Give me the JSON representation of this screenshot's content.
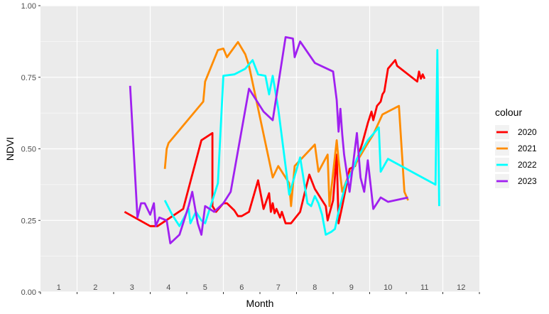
{
  "chart_data": {
    "type": "line",
    "xlabel": "Month",
    "ylabel": "NDVI",
    "xlim": [
      0.5,
      12.5
    ],
    "ylim": [
      0,
      1
    ],
    "y_ticks": [
      "0.00",
      "0.25",
      "0.50",
      "0.75",
      "1.00"
    ],
    "y_tick_values": [
      0,
      0.25,
      0.5,
      0.75,
      1.0
    ],
    "month_labels": [
      "1",
      "2",
      "3",
      "4",
      "5",
      "6",
      "7",
      "8",
      "9",
      "10",
      "11",
      "12"
    ],
    "grid": true,
    "legend_position": "right",
    "legend_title": "colour",
    "series": [
      {
        "name": "2020",
        "color": "#ff0000",
        "points": [
          [
            2.8,
            0.28
          ],
          [
            3.5,
            0.23
          ],
          [
            3.7,
            0.23
          ],
          [
            4.4,
            0.29
          ],
          [
            4.9,
            0.53
          ],
          [
            5.2,
            0.555
          ],
          [
            5.2,
            0.3
          ],
          [
            5.3,
            0.28
          ],
          [
            5.5,
            0.31
          ],
          [
            5.6,
            0.31
          ],
          [
            5.8,
            0.285
          ],
          [
            5.9,
            0.265
          ],
          [
            6.0,
            0.265
          ],
          [
            6.2,
            0.28
          ],
          [
            6.45,
            0.39
          ],
          [
            6.6,
            0.29
          ],
          [
            6.75,
            0.345
          ],
          [
            6.8,
            0.28
          ],
          [
            6.85,
            0.31
          ],
          [
            6.9,
            0.275
          ],
          [
            6.95,
            0.29
          ],
          [
            7.05,
            0.26
          ],
          [
            7.1,
            0.28
          ],
          [
            7.2,
            0.24
          ],
          [
            7.35,
            0.24
          ],
          [
            7.6,
            0.28
          ],
          [
            7.75,
            0.36
          ],
          [
            7.85,
            0.41
          ],
          [
            8.0,
            0.36
          ],
          [
            8.2,
            0.32
          ],
          [
            8.3,
            0.3
          ],
          [
            8.35,
            0.25
          ],
          [
            8.5,
            0.32
          ],
          [
            8.6,
            0.48
          ],
          [
            8.65,
            0.24
          ],
          [
            8.75,
            0.3
          ],
          [
            8.95,
            0.43
          ],
          [
            9.1,
            0.44
          ],
          [
            9.3,
            0.52
          ],
          [
            9.45,
            0.59
          ],
          [
            9.55,
            0.63
          ],
          [
            9.6,
            0.6
          ],
          [
            9.7,
            0.65
          ],
          [
            9.8,
            0.665
          ],
          [
            9.85,
            0.69
          ],
          [
            9.9,
            0.7
          ],
          [
            10.0,
            0.78
          ],
          [
            10.2,
            0.81
          ],
          [
            10.25,
            0.79
          ],
          [
            10.8,
            0.735
          ],
          [
            10.85,
            0.77
          ],
          [
            10.9,
            0.745
          ],
          [
            10.95,
            0.76
          ],
          [
            11.0,
            0.745
          ]
        ]
      },
      {
        "name": "2021",
        "color": "#ff8c00",
        "points": [
          [
            3.9,
            0.43
          ],
          [
            3.95,
            0.5
          ],
          [
            4.0,
            0.52
          ],
          [
            4.95,
            0.665
          ],
          [
            5.0,
            0.735
          ],
          [
            5.35,
            0.845
          ],
          [
            5.5,
            0.85
          ],
          [
            5.6,
            0.82
          ],
          [
            5.9,
            0.873
          ],
          [
            6.1,
            0.83
          ],
          [
            6.2,
            0.79
          ],
          [
            6.75,
            0.46
          ],
          [
            6.85,
            0.4
          ],
          [
            7.0,
            0.44
          ],
          [
            7.3,
            0.38
          ],
          [
            7.35,
            0.3
          ],
          [
            7.45,
            0.44
          ],
          [
            8.0,
            0.515
          ],
          [
            8.1,
            0.42
          ],
          [
            8.35,
            0.48
          ],
          [
            8.4,
            0.3
          ],
          [
            8.6,
            0.53
          ],
          [
            8.65,
            0.46
          ],
          [
            8.75,
            0.35
          ],
          [
            8.9,
            0.4
          ],
          [
            9.4,
            0.51
          ],
          [
            9.6,
            0.55
          ],
          [
            9.85,
            0.62
          ],
          [
            10.3,
            0.65
          ],
          [
            10.45,
            0.35
          ],
          [
            10.55,
            0.32
          ]
        ]
      },
      {
        "name": "2022",
        "color": "#00ffff",
        "points": [
          [
            3.9,
            0.32
          ],
          [
            4.1,
            0.27
          ],
          [
            4.3,
            0.23
          ],
          [
            4.55,
            0.29
          ],
          [
            4.6,
            0.24
          ],
          [
            4.75,
            0.28
          ],
          [
            4.9,
            0.25
          ],
          [
            5.0,
            0.24
          ],
          [
            5.35,
            0.38
          ],
          [
            5.5,
            0.755
          ],
          [
            5.8,
            0.76
          ],
          [
            6.1,
            0.78
          ],
          [
            6.3,
            0.81
          ],
          [
            6.45,
            0.76
          ],
          [
            6.65,
            0.755
          ],
          [
            6.75,
            0.69
          ],
          [
            6.85,
            0.755
          ],
          [
            7.0,
            0.64
          ],
          [
            7.3,
            0.34
          ],
          [
            7.6,
            0.47
          ],
          [
            7.8,
            0.31
          ],
          [
            7.9,
            0.3
          ],
          [
            8.0,
            0.335
          ],
          [
            8.1,
            0.31
          ],
          [
            8.2,
            0.27
          ],
          [
            8.3,
            0.2
          ],
          [
            8.45,
            0.21
          ],
          [
            8.55,
            0.22
          ],
          [
            8.65,
            0.28
          ],
          [
            8.85,
            0.38
          ],
          [
            9.05,
            0.43
          ],
          [
            9.15,
            0.465
          ],
          [
            9.45,
            0.53
          ],
          [
            9.75,
            0.575
          ],
          [
            9.8,
            0.42
          ],
          [
            10.0,
            0.465
          ],
          [
            11.3,
            0.375
          ],
          [
            11.35,
            0.845
          ],
          [
            11.4,
            0.3
          ]
        ]
      },
      {
        "name": "2023",
        "color": "#a020f0",
        "points": [
          [
            2.95,
            0.72
          ],
          [
            3.15,
            0.26
          ],
          [
            3.25,
            0.31
          ],
          [
            3.35,
            0.31
          ],
          [
            3.5,
            0.27
          ],
          [
            3.6,
            0.31
          ],
          [
            3.65,
            0.23
          ],
          [
            3.75,
            0.26
          ],
          [
            3.95,
            0.25
          ],
          [
            4.05,
            0.17
          ],
          [
            4.3,
            0.2
          ],
          [
            4.55,
            0.3
          ],
          [
            4.65,
            0.35
          ],
          [
            4.8,
            0.24
          ],
          [
            4.9,
            0.2
          ],
          [
            5.0,
            0.3
          ],
          [
            5.25,
            0.28
          ],
          [
            5.5,
            0.31
          ],
          [
            5.7,
            0.35
          ],
          [
            6.2,
            0.71
          ],
          [
            6.45,
            0.66
          ],
          [
            6.6,
            0.63
          ],
          [
            6.85,
            0.6
          ],
          [
            7.2,
            0.89
          ],
          [
            7.4,
            0.885
          ],
          [
            7.45,
            0.82
          ],
          [
            7.6,
            0.875
          ],
          [
            8.0,
            0.8
          ],
          [
            8.5,
            0.77
          ],
          [
            8.6,
            0.67
          ],
          [
            8.65,
            0.56
          ],
          [
            8.7,
            0.64
          ],
          [
            8.75,
            0.55
          ],
          [
            8.8,
            0.48
          ],
          [
            8.95,
            0.35
          ],
          [
            9.05,
            0.45
          ],
          [
            9.15,
            0.555
          ],
          [
            9.25,
            0.4
          ],
          [
            9.35,
            0.35
          ],
          [
            9.45,
            0.46
          ],
          [
            9.6,
            0.29
          ],
          [
            9.8,
            0.33
          ],
          [
            10.0,
            0.315
          ],
          [
            10.55,
            0.33
          ]
        ]
      }
    ]
  }
}
